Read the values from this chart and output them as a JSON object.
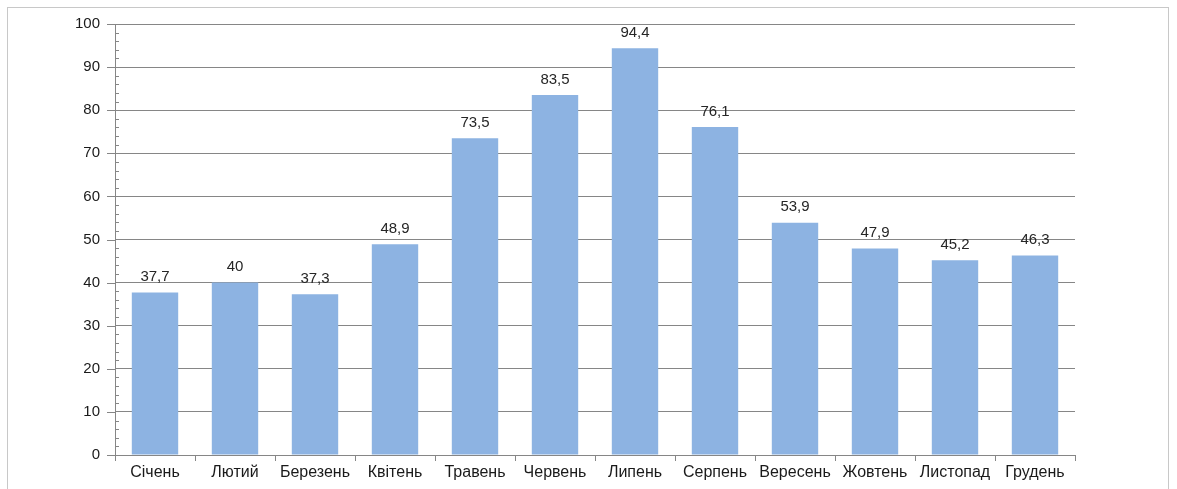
{
  "chart_data": {
    "type": "bar",
    "categories": [
      "Січень",
      "Лютий",
      "Березень",
      "Квітень",
      "Травень",
      "Червень",
      "Липень",
      "Серпень",
      "Вересень",
      "Жовтень",
      "Листопад",
      "Грудень"
    ],
    "values": [
      37.7,
      40,
      37.3,
      48.9,
      73.5,
      83.5,
      94.4,
      76.1,
      53.9,
      47.9,
      45.2,
      46.3
    ],
    "value_labels": [
      "37,7",
      "40",
      "37,3",
      "48,9",
      "73,5",
      "83,5",
      "94,4",
      "76,1",
      "53,9",
      "47,9",
      "45,2",
      "46,3"
    ],
    "color": "#8db3e2",
    "ylim": [
      0,
      100
    ],
    "yticks": [
      0,
      {
        "value": 2,
        "label": null
      },
      {
        "value": 4,
        "label": null
      },
      {
        "value": 6,
        "label": null
      },
      {
        "value": 8,
        "label": null
      },
      10,
      {
        "value": 12,
        "label": null
      },
      {
        "value": 14,
        "label": null
      },
      {
        "value": 16,
        "label": null
      },
      {
        "value": 18,
        "label": null
      },
      20,
      {
        "value": 22,
        "label": null
      },
      {
        "value": 24,
        "label": null
      },
      {
        "value": 26,
        "label": null
      },
      {
        "value": 28,
        "label": null
      },
      30,
      {
        "value": 32,
        "label": null
      },
      {
        "value": 34,
        "label": null
      },
      {
        "value": 36,
        "label": null
      },
      {
        "value": 38,
        "label": null
      },
      40,
      {
        "value": 42,
        "label": null
      },
      {
        "value": 44,
        "label": null
      },
      {
        "value": 46,
        "label": null
      },
      {
        "value": 48,
        "label": null
      },
      50,
      {
        "value": 52,
        "label": null
      },
      {
        "value": 54,
        "label": null
      },
      {
        "value": 56,
        "label": null
      },
      {
        "value": 58,
        "label": null
      },
      60,
      {
        "value": 62,
        "label": null
      },
      {
        "value": 64,
        "label": null
      },
      {
        "value": 66,
        "label": null
      },
      {
        "value": 68,
        "label": null
      },
      70,
      {
        "value": 72,
        "label": null
      },
      {
        "value": 74,
        "label": null
      },
      {
        "value": 76,
        "label": null
      },
      {
        "value": 78,
        "label": null
      },
      80,
      {
        "value": 82,
        "label": null
      },
      {
        "value": 84,
        "label": null
      },
      {
        "value": 86,
        "label": null
      },
      {
        "value": 88,
        "label": null
      },
      90,
      {
        "value": 92,
        "label": null
      },
      {
        "value": 94,
        "label": null
      },
      {
        "value": 96,
        "label": null
      },
      {
        "value": 98,
        "label": null
      },
      100
    ],
    "grid": "y"
  }
}
